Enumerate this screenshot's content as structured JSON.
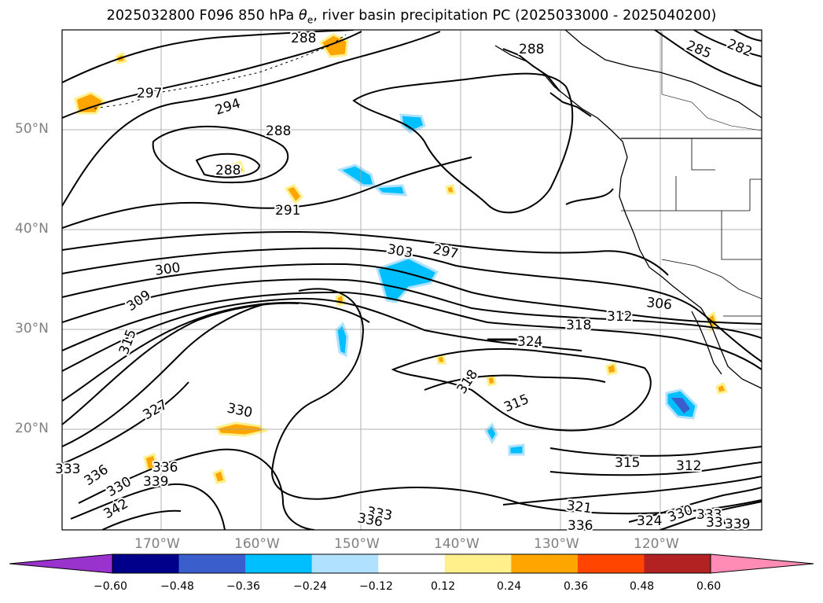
{
  "title": {
    "main": "2025032800 F096 850 hPa ",
    "theta": "θ",
    "theta_sub": "e",
    "rest": ", river basin precipitation PC (2025033000 - 2025040200)"
  },
  "lat_labels": [
    "50°N",
    "40°N",
    "30°N",
    "20°N"
  ],
  "lon_labels": [
    "170°W",
    "160°W",
    "150°W",
    "140°W",
    "130°W",
    "120°W"
  ],
  "contour_labels": [
    "288",
    "288",
    "297",
    "294",
    "288",
    "288",
    "291",
    "285",
    "282",
    "303",
    "297",
    "300",
    "309",
    "315",
    "306",
    "312",
    "318",
    "324",
    "318",
    "315",
    "330",
    "327",
    "333",
    "336",
    "339",
    "336",
    "342",
    "330",
    "315",
    "312",
    "321",
    "333",
    "336",
    "324",
    "330",
    "333",
    "336",
    "339",
    "336"
  ],
  "colorbar": {
    "ticks": [
      "−0.60",
      "−0.48",
      "−0.36",
      "−0.24",
      "−0.12",
      "0.12",
      "0.24",
      "0.36",
      "0.48",
      "0.60"
    ],
    "colors": {
      "under": "#9a32cd",
      "bins": [
        "#00008b",
        "#3a5fcd",
        "#00bfff",
        "#b0e2ff",
        "#ffffff",
        "#fff08c",
        "#ffa500",
        "#ff4500",
        "#b22222"
      ],
      "over": "#ff8cb4"
    }
  },
  "colors": {
    "contour": "#000000",
    "grid": "#9e9e9e",
    "axis_label": "#808080"
  }
}
